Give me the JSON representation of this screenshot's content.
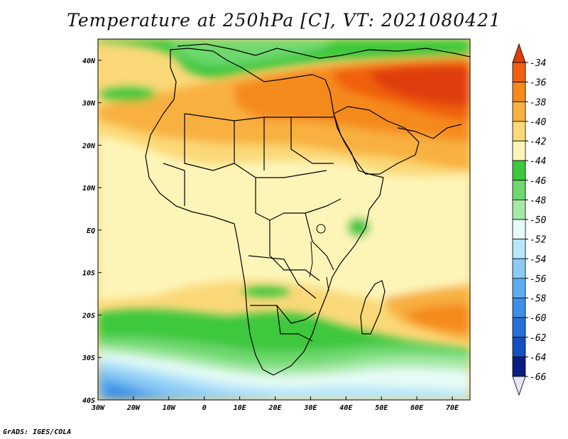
{
  "title": "Temperature at 250hPa [C], VT: 2021080421",
  "credit": "GrADS: IGES/COLA",
  "map": {
    "variable": "Temperature",
    "level": "250hPa",
    "units": "C",
    "valid_time": "2021080421",
    "lon_range": [
      -30,
      75
    ],
    "lat_range": [
      -40,
      45
    ],
    "x_ticks": [
      {
        "lon": -30,
        "label": "30W"
      },
      {
        "lon": -20,
        "label": "20W"
      },
      {
        "lon": -10,
        "label": "10W"
      },
      {
        "lon": 0,
        "label": "0"
      },
      {
        "lon": 10,
        "label": "10E"
      },
      {
        "lon": 20,
        "label": "20E"
      },
      {
        "lon": 30,
        "label": "30E"
      },
      {
        "lon": 40,
        "label": "40E"
      },
      {
        "lon": 50,
        "label": "50E"
      },
      {
        "lon": 60,
        "label": "60E"
      },
      {
        "lon": 70,
        "label": "70E"
      }
    ],
    "y_ticks": [
      {
        "lat": 40,
        "label": "40N"
      },
      {
        "lat": 30,
        "label": "30N"
      },
      {
        "lat": 20,
        "label": "20N"
      },
      {
        "lat": 10,
        "label": "10N"
      },
      {
        "lat": 0,
        "label": "EQ"
      },
      {
        "lat": -10,
        "label": "10S"
      },
      {
        "lat": -20,
        "label": "20S"
      },
      {
        "lat": -30,
        "label": "30S"
      },
      {
        "lat": -40,
        "label": "40S"
      }
    ]
  },
  "colorbar": {
    "labels": [
      "-34",
      "-36",
      "-38",
      "-40",
      "-42",
      "-44",
      "-46",
      "-48",
      "-50",
      "-52",
      "-54",
      "-56",
      "-58",
      "-60",
      "-62",
      "-64",
      "-66"
    ],
    "colors": [
      "#e03c0a",
      "#f06010",
      "#f58a1a",
      "#f8b040",
      "#fbd878",
      "#fdf5b8",
      "#3ec83e",
      "#6ed86e",
      "#a6e9a6",
      "#e6fbf6",
      "#b6e6fa",
      "#8ccaf5",
      "#5eacf0",
      "#3c8fe6",
      "#2670d8",
      "#1650c0",
      "#0a1e82"
    ],
    "top_color": "#e03c0a",
    "bottom_color": "#e6e6fa"
  }
}
